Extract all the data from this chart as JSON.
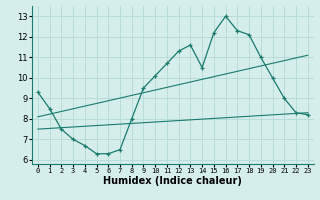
{
  "xlabel": "Humidex (Indice chaleur)",
  "ylabel": "",
  "background_color": "#d5eeeb",
  "grid_color": "#b8dcd8",
  "line_color": "#1a7a6e",
  "xlim": [
    -0.5,
    23.5
  ],
  "ylim": [
    5.8,
    13.5
  ],
  "xticks": [
    0,
    1,
    2,
    3,
    4,
    5,
    6,
    7,
    8,
    9,
    10,
    11,
    12,
    13,
    14,
    15,
    16,
    17,
    18,
    19,
    20,
    21,
    22,
    23
  ],
  "yticks": [
    6,
    7,
    8,
    9,
    10,
    11,
    12,
    13
  ],
  "series1_x": [
    0,
    1,
    2,
    3,
    4,
    5,
    6,
    7,
    8,
    9,
    10,
    11,
    12,
    13,
    14,
    15,
    16,
    17,
    18,
    19,
    20,
    21,
    22,
    23
  ],
  "series1_y": [
    9.3,
    8.5,
    7.5,
    7.0,
    6.7,
    6.3,
    6.3,
    6.5,
    8.0,
    9.5,
    10.1,
    10.7,
    11.3,
    11.6,
    10.5,
    12.2,
    13.0,
    12.3,
    12.1,
    11.0,
    10.0,
    9.0,
    8.3,
    8.2
  ],
  "series2_x": [
    0,
    23
  ],
  "series2_y": [
    8.1,
    11.1
  ],
  "series3_x": [
    0,
    23
  ],
  "series3_y": [
    7.5,
    8.3
  ],
  "xlabel_fontsize": 7,
  "tick_fontsize_x": 5,
  "tick_fontsize_y": 6
}
